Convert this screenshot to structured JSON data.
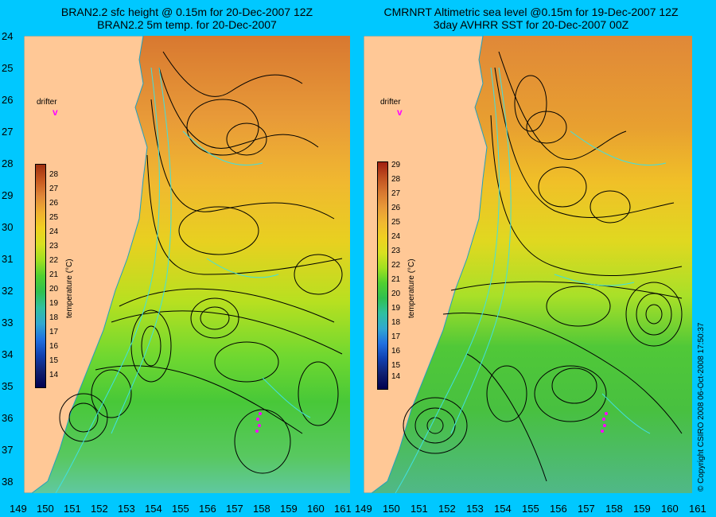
{
  "panels": [
    {
      "title_line1": "BRAN2.2 sfc height @ 0.15m for 20-Dec-2007 12Z",
      "title_line2": "BRAN2.2 5m temp. for 20-Dec-2007",
      "drifter_label": "drifter",
      "drifter_symbol": "v",
      "colorbar_ticks": [
        "28",
        "27",
        "26",
        "25",
        "24",
        "23",
        "22",
        "21",
        "20",
        "19",
        "18",
        "17",
        "16",
        "15",
        "14"
      ],
      "colorbar_title": "temperature (°C)"
    },
    {
      "title_line1": "CMRNRT Altimetric sea level  @0.15m  for 19-Dec-2007 12Z",
      "title_line2": "3day AVHRR SST for 20-Dec-2007 00Z",
      "drifter_label": "drifter",
      "drifter_symbol": "v",
      "colorbar_ticks": [
        "29",
        "28",
        "27",
        "26",
        "25",
        "24",
        "23",
        "22",
        "21",
        "20",
        "19",
        "18",
        "17",
        "16",
        "15",
        "14"
      ],
      "colorbar_title": "temperature (°C)"
    }
  ],
  "y_axis_labels": [
    "24",
    "25",
    "26",
    "27",
    "28",
    "29",
    "30",
    "31",
    "32",
    "33",
    "34",
    "35",
    "36",
    "37",
    "38"
  ],
  "x_axis_labels": [
    "149",
    "150",
    "151",
    "152",
    "153",
    "154",
    "155",
    "156",
    "157",
    "158",
    "159",
    "160",
    "161"
  ],
  "copyright": "© Copyright CSIRO 2008   06-Oct-2008 17:50:37",
  "colors": {
    "background": "#00c8ff",
    "land": "#ffc896",
    "drifter": "#ff00ff",
    "contour": "#000000",
    "bathymetry": "#40e0e0"
  }
}
